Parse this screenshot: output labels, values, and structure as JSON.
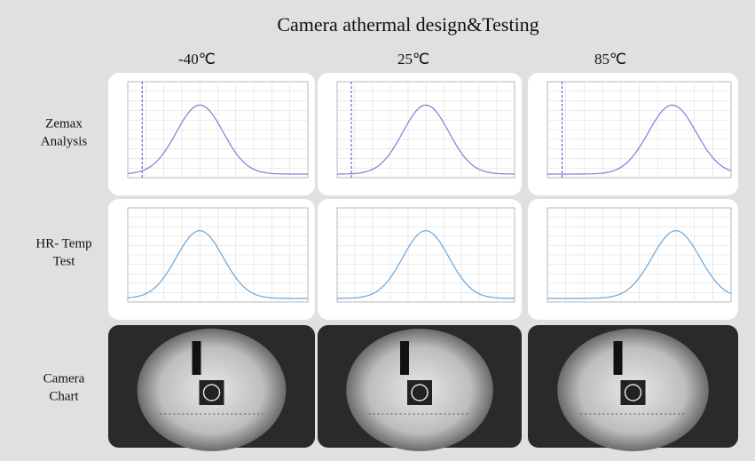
{
  "header": {
    "title": "Camera athermal design&Testing"
  },
  "columns": [
    "-40℃",
    "25℃",
    "85℃"
  ],
  "rows": [
    {
      "label": [
        "Zemax",
        "Analysis"
      ]
    },
    {
      "label": [
        "HR- Temp",
        "Test"
      ]
    },
    {
      "label": [
        "Camera",
        "Chart"
      ]
    }
  ]
}
